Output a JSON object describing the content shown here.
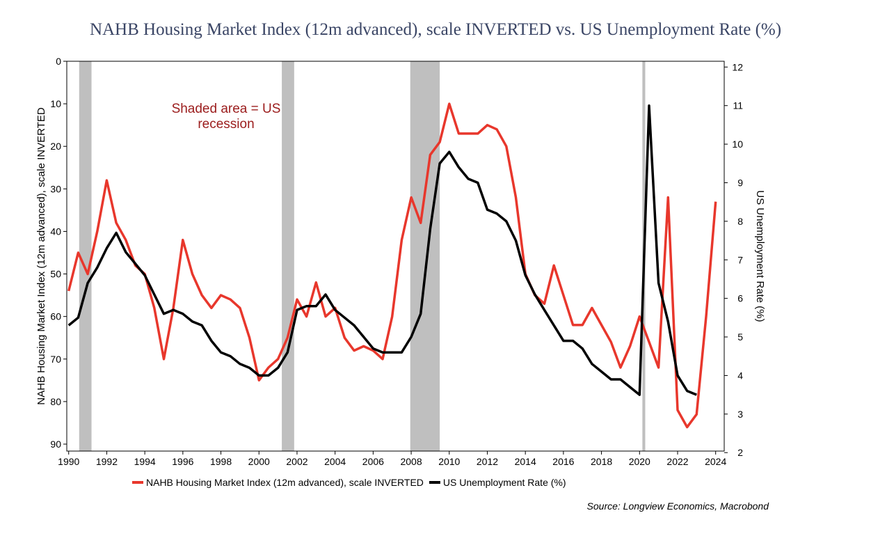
{
  "chart_data": {
    "type": "line",
    "title": "NAHB Housing Market Index (12m advanced), scale INVERTED vs. US Unemployment Rate (%)",
    "ylabel": "NAHB Housing Market Index (12m advanced), scale INVERTED",
    "y2label": "US Unemployment Rate (%)",
    "annotation": "Shaded area = US recession",
    "source": "Source: Longview Economics, Macrobond",
    "recession_color": "#bfbfbf",
    "recessions": [
      [
        1990.55,
        1991.2
      ],
      [
        2001.2,
        2001.85
      ],
      [
        2007.95,
        2009.5
      ],
      [
        2020.15,
        2020.3
      ]
    ],
    "xlim": [
      1989.9,
      2024.45
    ],
    "xticks": [
      1990,
      1992,
      1994,
      1996,
      1998,
      2000,
      2002,
      2004,
      2006,
      2008,
      2010,
      2012,
      2014,
      2016,
      2018,
      2020,
      2022,
      2024
    ],
    "ylim": [
      90,
      0
    ],
    "yticks": [
      0,
      10,
      20,
      30,
      40,
      50,
      60,
      70,
      80,
      90
    ],
    "y2lim": [
      2.04,
      12.15
    ],
    "y2ticks": [
      2,
      3,
      4,
      5,
      6,
      7,
      8,
      9,
      10,
      11,
      12
    ],
    "x": [
      1990,
      1990.5,
      1991,
      1991.5,
      1992,
      1992.5,
      1993,
      1993.5,
      1994,
      1994.5,
      1995,
      1995.5,
      1996,
      1996.5,
      1997,
      1997.5,
      1998,
      1998.5,
      1999,
      1999.5,
      2000,
      2000.5,
      2001,
      2001.5,
      2002,
      2002.5,
      2003,
      2003.5,
      2004,
      2004.5,
      2005,
      2005.5,
      2006,
      2006.5,
      2007,
      2007.5,
      2008,
      2008.5,
      2009,
      2009.5,
      2010,
      2010.5,
      2011,
      2011.5,
      2012,
      2012.5,
      2013,
      2013.5,
      2014,
      2014.5,
      2015,
      2015.5,
      2016,
      2016.5,
      2017,
      2017.5,
      2018,
      2018.5,
      2019,
      2019.5,
      2020,
      2020.5,
      2021,
      2021.5,
      2022,
      2022.5,
      2023,
      2023.5,
      2024
    ],
    "series": [
      {
        "name": "NAHB Housing Market Index (12m advanced), scale INVERTED",
        "color": "#e8372c",
        "axis": "y",
        "values": [
          54,
          45,
          50,
          40,
          28,
          38,
          42,
          48,
          50,
          58,
          70,
          58,
          42,
          50,
          55,
          58,
          55,
          56,
          58,
          65,
          75,
          72,
          70,
          65,
          56,
          60,
          52,
          60,
          58,
          65,
          68,
          67,
          68,
          70,
          60,
          42,
          32,
          38,
          22,
          19,
          10,
          17,
          17,
          17,
          15,
          16,
          20,
          32,
          50,
          55,
          57,
          48,
          55,
          62,
          62,
          58,
          62,
          66,
          72,
          67,
          60,
          66,
          72,
          32,
          82,
          86,
          83,
          60,
          33
        ]
      },
      {
        "name": "US Unemployment Rate (%)",
        "color": "#000000",
        "axis": "y2",
        "values": [
          5.3,
          5.5,
          6.4,
          6.8,
          7.3,
          7.7,
          7.2,
          6.9,
          6.6,
          6.1,
          5.6,
          5.7,
          5.6,
          5.4,
          5.3,
          4.9,
          4.6,
          4.5,
          4.3,
          4.2,
          4.0,
          4.0,
          4.2,
          4.6,
          5.7,
          5.8,
          5.8,
          6.1,
          5.7,
          5.5,
          5.3,
          5.0,
          4.7,
          4.6,
          4.6,
          4.6,
          5.0,
          5.6,
          7.8,
          9.5,
          9.8,
          9.4,
          9.1,
          9.0,
          8.3,
          8.2,
          8.0,
          7.5,
          6.6,
          6.1,
          5.7,
          5.3,
          4.9,
          4.9,
          4.7,
          4.3,
          4.1,
          3.9,
          3.9,
          3.7,
          3.5,
          11.0,
          6.4,
          5.4,
          4.0,
          3.6,
          3.5,
          null,
          null
        ]
      }
    ]
  }
}
